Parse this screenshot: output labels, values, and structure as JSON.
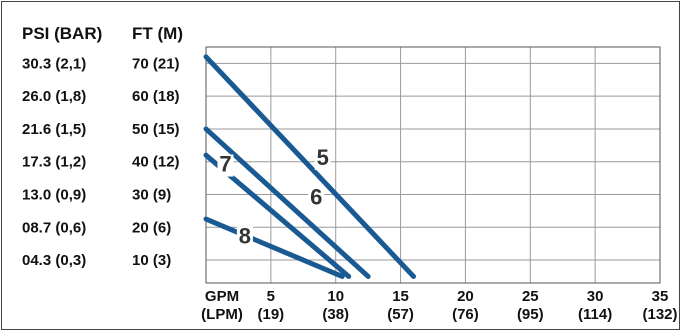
{
  "chart_data": {
    "type": "line",
    "headers": {
      "psi": "PSI (BAR)",
      "ft": "FT (M)"
    },
    "y_ticks": [
      {
        "ft": 70,
        "psi_label": "30.3 (2,1)",
        "ft_label": "70 (21)"
      },
      {
        "ft": 60,
        "psi_label": "26.0 (1,8)",
        "ft_label": "60 (18)"
      },
      {
        "ft": 50,
        "psi_label": "21.6 (1,5)",
        "ft_label": "50 (15)"
      },
      {
        "ft": 40,
        "psi_label": "17.3 (1,2)",
        "ft_label": "40 (12)"
      },
      {
        "ft": 30,
        "psi_label": "13.0 (0,9)",
        "ft_label": "30 (9)"
      },
      {
        "ft": 20,
        "psi_label": "08.7 (0,6)",
        "ft_label": "20 (6)"
      },
      {
        "ft": 10,
        "psi_label": "04.3 (0,3)",
        "ft_label": "10 (3)"
      }
    ],
    "x_unit_label": {
      "line1": "GPM",
      "line2": "(LPM)"
    },
    "x_ticks": [
      {
        "gpm": 5,
        "gpm_label": "5",
        "lpm_label": "(19)"
      },
      {
        "gpm": 10,
        "gpm_label": "10",
        "lpm_label": "(38)"
      },
      {
        "gpm": 15,
        "gpm_label": "15",
        "lpm_label": "(57)"
      },
      {
        "gpm": 20,
        "gpm_label": "20",
        "lpm_label": "(76)"
      },
      {
        "gpm": 25,
        "gpm_label": "25",
        "lpm_label": "(95)"
      },
      {
        "gpm": 30,
        "gpm_label": "30",
        "lpm_label": "(114)"
      },
      {
        "gpm": 35,
        "gpm_label": "35",
        "lpm_label": "(132)"
      }
    ],
    "xlim": [
      0,
      35
    ],
    "ylim": [
      3,
      75
    ],
    "grid": true,
    "series": [
      {
        "name": "5",
        "points": [
          [
            0,
            72
          ],
          [
            16,
            5
          ]
        ],
        "label_at": [
          9,
          39
        ]
      },
      {
        "name": "6",
        "points": [
          [
            0,
            50
          ],
          [
            12.5,
            5
          ]
        ],
        "label_at": [
          8.5,
          27
        ]
      },
      {
        "name": "7",
        "points": [
          [
            0,
            42
          ],
          [
            11,
            5
          ]
        ],
        "label_at": [
          1.5,
          37
        ]
      },
      {
        "name": "8",
        "points": [
          [
            0,
            22.5
          ],
          [
            10.5,
            5
          ]
        ],
        "label_at": [
          3,
          15
        ]
      }
    ],
    "line_color": "#1a5a93"
  }
}
